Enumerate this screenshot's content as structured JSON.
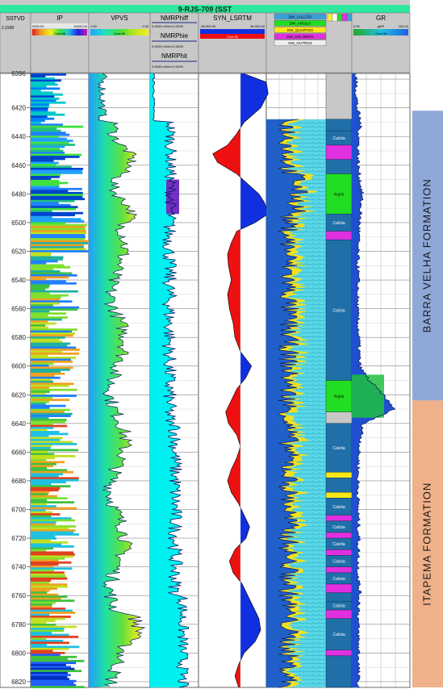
{
  "well_title": "9-RJS-709 (SST",
  "depth_track": {
    "header": "SSTVD",
    "scale_value": "1:1500"
  },
  "depth_ticks": [
    6396,
    6420,
    6440,
    6460,
    6480,
    6500,
    6520,
    6540,
    6560,
    6580,
    6600,
    6620,
    6640,
    6660,
    6680,
    6700,
    6720,
    6740,
    6760,
    6780,
    6800,
    6820
  ],
  "depth_range": [
    6396,
    6824
  ],
  "tracks": [
    {
      "name": "IP",
      "scale_min": "5000.00",
      "scale_max": "16000.00",
      "fill_label": "Core fill"
    },
    {
      "name": "VPVS",
      "scale_min": "1.60",
      "scale_max": "2.00",
      "fill_label": "Core fill"
    },
    {
      "name": "NMRPhiff",
      "scale": "0.0000 m3/m3 0.3000"
    },
    {
      "name": "NMRPhie",
      "scale": "0.0000 m3/m3 0.3000"
    },
    {
      "name": "NMRPhit",
      "scale": "0.0000 m3/m3 0.3000"
    },
    {
      "name": "SYN_LSRTM",
      "scale_min": "-35,000.00",
      "scale_max": "35,000.00",
      "fill_label": "Core fill"
    },
    {
      "name": "GR",
      "scale_min": "0.00",
      "unit": "gAPI",
      "scale_max": "150.00",
      "fill_label": "Core fill"
    }
  ],
  "lithology_legend": [
    "DW_CALCITA",
    "DW_ARGILA",
    "DW_QUARTZO",
    "DW_DOLOMITA",
    "DW_OUTROS"
  ],
  "colors": {
    "header_bar": "#2ee8a0",
    "header_bg": "#c8c8c8",
    "calcite": "#3aa0d8",
    "argila": "#22dd22",
    "quartzo": "#f8e818",
    "dolomita": "#e030e0",
    "outros": "#eeeeee",
    "formation_upper": "#8fa8d8",
    "formation_lower": "#f0b08a",
    "seismic_positive": "#1030e0",
    "seismic_negative": "#ee1010",
    "curve": "#0a1860"
  },
  "lithology_column": [
    {
      "top": 6396,
      "base": 6428,
      "label": "",
      "kind": "outros"
    },
    {
      "top": 6428,
      "base": 6436,
      "label": "",
      "kind": "calcite"
    },
    {
      "top": 6436,
      "base": 6446,
      "label": "Calcita",
      "kind": "calcite"
    },
    {
      "top": 6446,
      "base": 6456,
      "label": "",
      "kind": "dolomita"
    },
    {
      "top": 6456,
      "base": 6466,
      "label": "",
      "kind": "calcite"
    },
    {
      "top": 6466,
      "base": 6494,
      "label": "Argila",
      "kind": "argila"
    },
    {
      "top": 6494,
      "base": 6506,
      "label": "Calcita",
      "kind": "calcite"
    },
    {
      "top": 6506,
      "base": 6512,
      "label": "",
      "kind": "dolomita"
    },
    {
      "top": 6512,
      "base": 6610,
      "label": "Calcita",
      "kind": "calcite"
    },
    {
      "top": 6610,
      "base": 6632,
      "label": "Argila",
      "kind": "argila"
    },
    {
      "top": 6632,
      "base": 6640,
      "label": "",
      "kind": "outros"
    },
    {
      "top": 6640,
      "base": 6674,
      "label": "Calcita",
      "kind": "calcite"
    },
    {
      "top": 6674,
      "base": 6678,
      "label": "",
      "kind": "quartzo"
    },
    {
      "top": 6678,
      "base": 6688,
      "label": "",
      "kind": "calcite"
    },
    {
      "top": 6688,
      "base": 6692,
      "label": "",
      "kind": "quartzo"
    },
    {
      "top": 6692,
      "base": 6704,
      "label": "Calcita",
      "kind": "calcite"
    },
    {
      "top": 6704,
      "base": 6708,
      "label": "",
      "kind": "dolomita"
    },
    {
      "top": 6708,
      "base": 6716,
      "label": "Calcita",
      "kind": "calcite"
    },
    {
      "top": 6716,
      "base": 6720,
      "label": "",
      "kind": "dolomita"
    },
    {
      "top": 6720,
      "base": 6728,
      "label": "Calcita",
      "kind": "calcite"
    },
    {
      "top": 6728,
      "base": 6732,
      "label": "",
      "kind": "dolomita"
    },
    {
      "top": 6732,
      "base": 6740,
      "label": "Calcita",
      "kind": "calcite"
    },
    {
      "top": 6740,
      "base": 6744,
      "label": "",
      "kind": "dolomita"
    },
    {
      "top": 6744,
      "base": 6752,
      "label": "Calcita",
      "kind": "calcite"
    },
    {
      "top": 6752,
      "base": 6758,
      "label": "",
      "kind": "dolomita"
    },
    {
      "top": 6758,
      "base": 6764,
      "label": "",
      "kind": "calcite"
    },
    {
      "top": 6764,
      "base": 6770,
      "label": "Calcita",
      "kind": "calcite"
    },
    {
      "top": 6770,
      "base": 6776,
      "label": "",
      "kind": "dolomita"
    },
    {
      "top": 6776,
      "base": 6798,
      "label": "Calcita",
      "kind": "calcite"
    },
    {
      "top": 6798,
      "base": 6802,
      "label": "",
      "kind": "dolomita"
    },
    {
      "top": 6802,
      "base": 6824,
      "label": "",
      "kind": "calcite"
    }
  ],
  "formations": [
    {
      "name": "BARRA VELHA FORMATION",
      "top": 6422,
      "base": 6624,
      "kind": "formation_upper"
    },
    {
      "name": "ITAPEMA FORMATION",
      "top": 6624,
      "base": 6824,
      "kind": "formation_lower"
    }
  ],
  "chart_data": {
    "type": "line",
    "title": "9-RJS-709 (SST",
    "ylabel": "SSTVD",
    "ylim": [
      6396,
      6824
    ],
    "y_ticks": [
      6420,
      6440,
      6460,
      6480,
      6500,
      6520,
      6540,
      6560,
      6580,
      6600,
      6620,
      6640,
      6660,
      6680,
      6700,
      6720,
      6740,
      6760,
      6780,
      6800,
      6820
    ],
    "series": [
      {
        "name": "SYN_LSRTM",
        "xlim": [
          -35000,
          35000
        ],
        "depth": [
          6396,
          6402,
          6410,
          6420,
          6430,
          6438,
          6446,
          6452,
          6458,
          6466,
          6472,
          6480,
          6486,
          6494,
          6500,
          6506,
          6514,
          6522,
          6530,
          6540,
          6550,
          6560,
          6570,
          6580,
          6590,
          6600,
          6608,
          6616,
          6624,
          6632,
          6640,
          6648,
          6656,
          6664,
          6672,
          6680,
          6688,
          6696,
          6704,
          6712,
          6720,
          6728,
          6736,
          6744,
          6752,
          6760,
          6768,
          6776,
          6784,
          6792,
          6800,
          6808,
          6816,
          6824
        ],
        "values": [
          3000,
          28000,
          30000,
          22000,
          4000,
          -4000,
          -14000,
          -30000,
          -25000,
          -4000,
          6000,
          20000,
          26000,
          30000,
          16000,
          -4000,
          -10000,
          -14000,
          -13000,
          -10000,
          -14000,
          -12000,
          -8000,
          -6000,
          0,
          12000,
          6000,
          -4000,
          -10000,
          -16000,
          -13000,
          -4000,
          0,
          -4000,
          -10000,
          -14000,
          -10000,
          -2000,
          4000,
          10000,
          6000,
          -6000,
          -12000,
          -8000,
          2000,
          8000,
          14000,
          20000,
          22000,
          16000,
          4000,
          -2000,
          -6000,
          -2000
        ]
      },
      {
        "name": "GR",
        "xlim": [
          0,
          150
        ],
        "depth": [
          6396,
          6420,
          6430,
          6440,
          6460,
          6480,
          6500,
          6520,
          6540,
          6560,
          6580,
          6600,
          6610,
          6620,
          6630,
          6640,
          6660,
          6680,
          6700,
          6720,
          6740,
          6760,
          6780,
          6800,
          6824
        ],
        "values": [
          10,
          14,
          22,
          18,
          16,
          26,
          20,
          15,
          16,
          14,
          18,
          20,
          45,
          80,
          110,
          30,
          18,
          16,
          16,
          18,
          16,
          20,
          16,
          18,
          16
        ]
      }
    ]
  }
}
